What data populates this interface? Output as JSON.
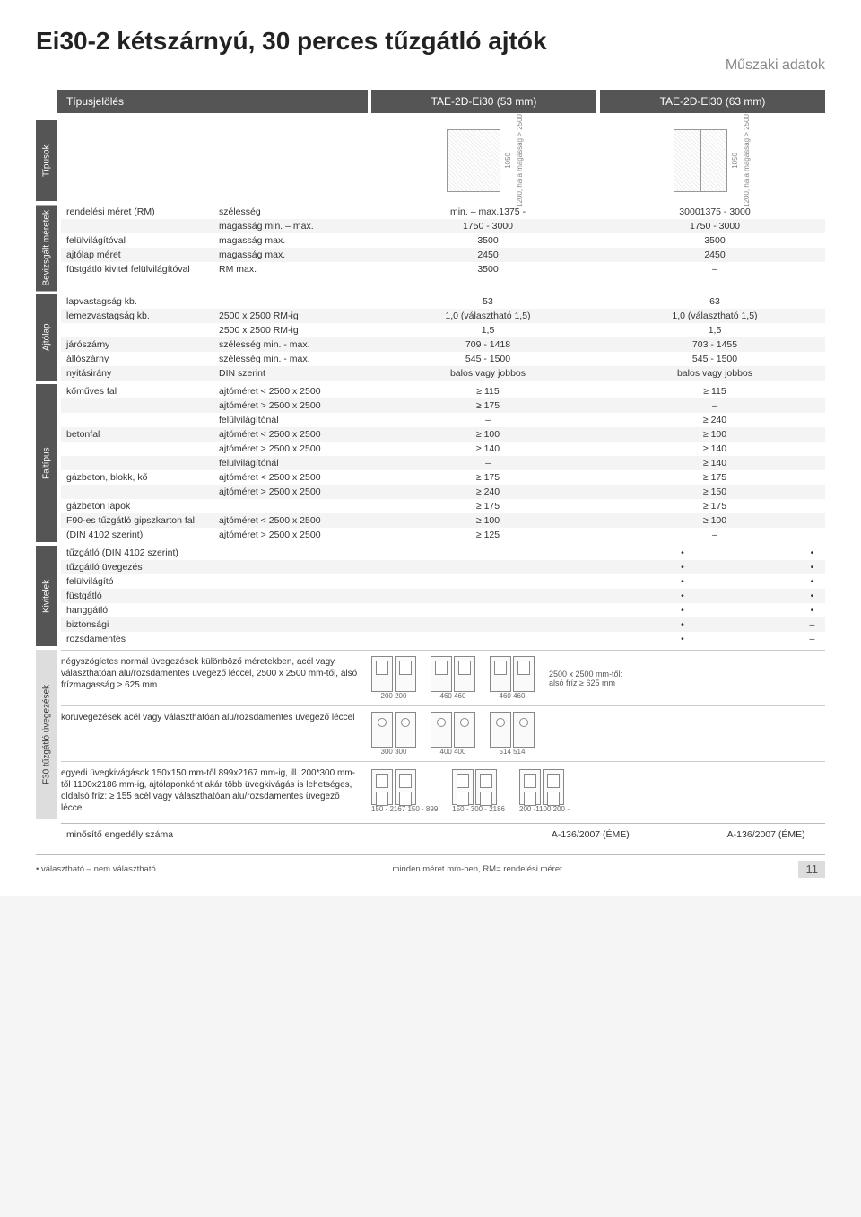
{
  "title": "Ei30-2 kétszárnyú, 30 perces tűzgátló ajtók",
  "subtitle": "Műszaki adatok",
  "header": {
    "label": "Típusjelölés",
    "col1": "TAE-2D-Ei30 (53 mm)",
    "col2": "TAE-2D-Ei30 (63 mm)"
  },
  "types_dims": {
    "a": "1050",
    "b": "1200, ha a magasság > 2500"
  },
  "section_labels": {
    "types": "Típusok",
    "sizes": "Bevizsgált méretek",
    "leaf": "Ajtólap",
    "wall": "Faltípus",
    "options": "Kivitelek",
    "glazing": "F30 tűzgátló üvegezések"
  },
  "sizes": [
    {
      "a": "rendelési méret (RM)",
      "b": "szélesség",
      "c": "min. – max.1375  -",
      "d": "30001375  -     3000"
    },
    {
      "a": "",
      "b": "magasság  min. – max.",
      "c": "1750 - 3000",
      "d": "1750 - 3000"
    },
    {
      "a": "felülvilágítóval",
      "b": "magasság max.",
      "c": "3500",
      "d": "3500"
    },
    {
      "a": "ajtólap méret",
      "b": "magasság max.",
      "c": "2450",
      "d": "2450"
    },
    {
      "a": "füstgátló kivitel felülvilágítóval",
      "b": "RM max.",
      "c": "3500",
      "d": "–"
    }
  ],
  "leaf": [
    {
      "a": "lapvastagság kb.",
      "b": "",
      "c": "53",
      "d": "63"
    },
    {
      "a": "lemezvastagság kb.",
      "b": "2500 x 2500 RM-ig",
      "c": "1,0 (választható 1,5)",
      "d": "1,0 (választható 1,5)"
    },
    {
      "a": "",
      "b": "2500 x 2500 RM-ig",
      "c": "1,5",
      "d": "1,5"
    },
    {
      "a": "járószárny",
      "b": "szélesség min. - max.",
      "c": "709 - 1418",
      "d": "703 - 1455"
    },
    {
      "a": "állószárny",
      "b": "szélesség min. - max.",
      "c": "545 - 1500",
      "d": "545 - 1500"
    },
    {
      "a": "nyitásirány",
      "b": "DIN szerint",
      "c": "balos vagy jobbos",
      "d": "balos vagy jobbos"
    }
  ],
  "wall": [
    {
      "a": "kőműves fal",
      "b": "ajtóméret < 2500 x 2500",
      "c": "≥ 115",
      "d": "≥ 115"
    },
    {
      "a": "",
      "b": "ajtóméret > 2500 x 2500",
      "c": "≥ 175",
      "d": "–"
    },
    {
      "a": "",
      "b": "felülvilágítónál",
      "c": "–",
      "d": "≥ 240"
    },
    {
      "a": "betonfal",
      "b": "ajtóméret < 2500 x 2500",
      "c": "≥ 100",
      "d": "≥ 100"
    },
    {
      "a": "",
      "b": "ajtóméret > 2500 x 2500",
      "c": "≥ 140",
      "d": "≥ 140"
    },
    {
      "a": "",
      "b": "felülvilágítónál",
      "c": "–",
      "d": "≥ 140"
    },
    {
      "a": "gázbeton, blokk, kő",
      "b": "ajtóméret < 2500 x 2500",
      "c": "≥ 175",
      "d": "≥ 175"
    },
    {
      "a": "",
      "b": "ajtóméret > 2500 x 2500",
      "c": "≥ 240",
      "d": "≥ 150"
    },
    {
      "a": "gázbeton lapok",
      "b": "",
      "c": "≥ 175",
      "d": "≥ 175"
    },
    {
      "a": "F90-es tűzgátló gipszkarton fal",
      "b": "ajtóméret < 2500 x 2500",
      "c": "≥ 100",
      "d": "≥ 100"
    },
    {
      "a": "(DIN 4102 szerint)",
      "b": "ajtóméret > 2500 x 2500",
      "c": "≥ 125",
      "d": "–"
    }
  ],
  "options": [
    {
      "a": "tűzgátló (DIN 4102 szerint)",
      "c": "•",
      "d": "•"
    },
    {
      "a": "tűzgátló üvegezés",
      "c": "•",
      "d": "•"
    },
    {
      "a": "felülvilágító",
      "c": "•",
      "d": "•"
    },
    {
      "a": "füstgátló",
      "c": "•",
      "d": "•"
    },
    {
      "a": "hanggátló",
      "c": "•",
      "d": "•"
    },
    {
      "a": "biztonsági",
      "c": "•",
      "d": "–"
    },
    {
      "a": "rozsdamentes",
      "c": "•",
      "d": "–"
    }
  ],
  "glazing": [
    {
      "desc": "négyszögletes normál üvegezések különböző méretekben, acél vagy választhatóan alu/rozsdamentes üvegező léccel, 2500 x 2500 mm-től, alsó frízmagasság ≥ 625 mm",
      "note": "2500 x 2500 mm-től: alsó fríz ≥ 625 mm",
      "dims": [
        "200",
        "200",
        "460",
        "460",
        "460",
        "460",
        "600",
        "910",
        "1500"
      ]
    },
    {
      "desc": "körüvegezések acél vagy választhatóan alu/rozsdamentes üvegező léccel",
      "dims": [
        "300",
        "300",
        "400",
        "400",
        "514",
        "514"
      ]
    },
    {
      "desc": "egyedi üvegkivágások 150x150 mm-től 899x2167 mm-ig, ill. 200*300 mm-től 1100x2186 mm-ig, ajtólaponként akár több üvegkivágás is lehetséges, oldalsó fríz: ≥ 155 acél vagy választhatóan alu/rozsdamentes üvegező léccel",
      "dims": [
        "150 - 2167",
        "150 - 899",
        "150 -",
        "300 - 2186",
        "200 -1100",
        "200 -"
      ]
    }
  ],
  "cert": {
    "label": "minősítő engedély száma",
    "val": "A-136/2007 (ÉME)"
  },
  "footer": {
    "legend": "• választható  – nem választható",
    "note": "minden méret mm-ben, RM= rendelési méret",
    "page": "11"
  },
  "colors": {
    "dark": "#555555",
    "light": "#dddddd",
    "bg": "#ffffff"
  }
}
